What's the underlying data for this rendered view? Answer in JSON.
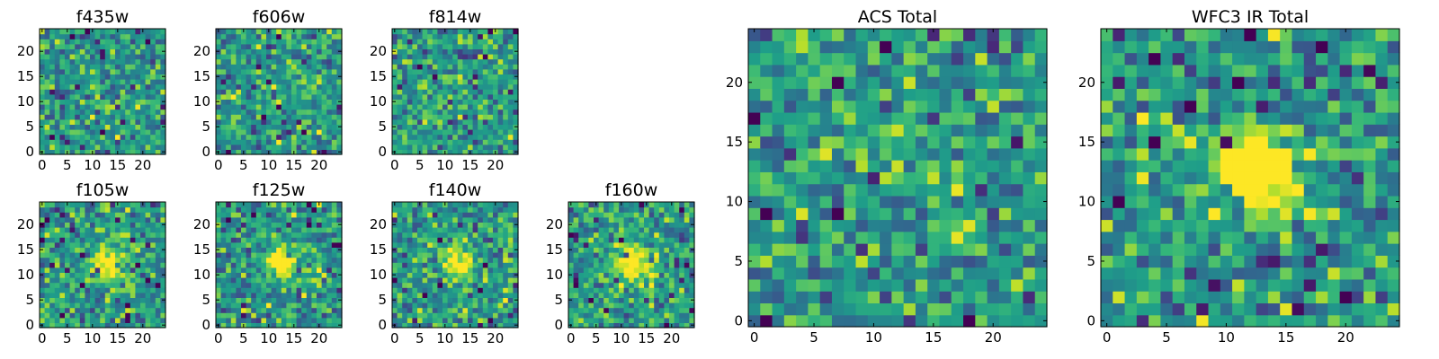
{
  "chart_data": {
    "type": "heatmap",
    "colormap": "viridis",
    "grid": false,
    "panels": [
      {
        "title": "f435w",
        "xlim": [
          0,
          24
        ],
        "ylim": [
          0,
          24
        ],
        "xticks": [
          0,
          5,
          10,
          15,
          20
        ],
        "yticks": [
          0,
          5,
          10,
          15,
          20
        ],
        "pixels": 25,
        "source_peak": 0.0
      },
      {
        "title": "f606w",
        "xlim": [
          0,
          24
        ],
        "ylim": [
          0,
          24
        ],
        "xticks": [
          0,
          5,
          10,
          15,
          20
        ],
        "yticks": [
          0,
          5,
          10,
          15,
          20
        ],
        "pixels": 25,
        "source_peak": 0.0
      },
      {
        "title": "f814w",
        "xlim": [
          0,
          24
        ],
        "ylim": [
          0,
          24
        ],
        "xticks": [
          0,
          5,
          10,
          15,
          20
        ],
        "yticks": [
          0,
          5,
          10,
          15,
          20
        ],
        "pixels": 25,
        "source_peak": 0.1
      },
      {
        "title": "f105w",
        "xlim": [
          0,
          24
        ],
        "ylim": [
          0,
          24
        ],
        "xticks": [
          0,
          5,
          10,
          15,
          20
        ],
        "yticks": [
          0,
          5,
          10,
          15,
          20
        ],
        "pixels": 25,
        "source_peak": 0.6
      },
      {
        "title": "f125w",
        "xlim": [
          0,
          24
        ],
        "ylim": [
          0,
          24
        ],
        "xticks": [
          0,
          5,
          10,
          15,
          20
        ],
        "yticks": [
          0,
          5,
          10,
          15,
          20
        ],
        "pixels": 25,
        "source_peak": 0.6
      },
      {
        "title": "f140w",
        "xlim": [
          0,
          24
        ],
        "ylim": [
          0,
          24
        ],
        "xticks": [
          0,
          5,
          10,
          15,
          20
        ],
        "yticks": [
          0,
          5,
          10,
          15,
          20
        ],
        "pixels": 25,
        "source_peak": 0.6
      },
      {
        "title": "f160w",
        "xlim": [
          0,
          24
        ],
        "ylim": [
          0,
          24
        ],
        "xticks": [
          0,
          5,
          10,
          15,
          20
        ],
        "yticks": [
          0,
          5,
          10,
          15,
          20
        ],
        "pixels": 25,
        "source_peak": 0.7
      },
      {
        "title": "ACS Total",
        "xlim": [
          0,
          24
        ],
        "ylim": [
          0,
          24
        ],
        "xticks": [
          0,
          5,
          10,
          15,
          20
        ],
        "yticks": [
          0,
          5,
          10,
          15,
          20
        ],
        "pixels": 25,
        "source_peak": 0.2
      },
      {
        "title": "WFC3 IR Total",
        "xlim": [
          0,
          24
        ],
        "ylim": [
          0,
          24
        ],
        "xticks": [
          0,
          5,
          10,
          15,
          20
        ],
        "yticks": [
          0,
          5,
          10,
          15,
          20
        ],
        "pixels": 25,
        "source_peak": 0.9
      }
    ]
  }
}
